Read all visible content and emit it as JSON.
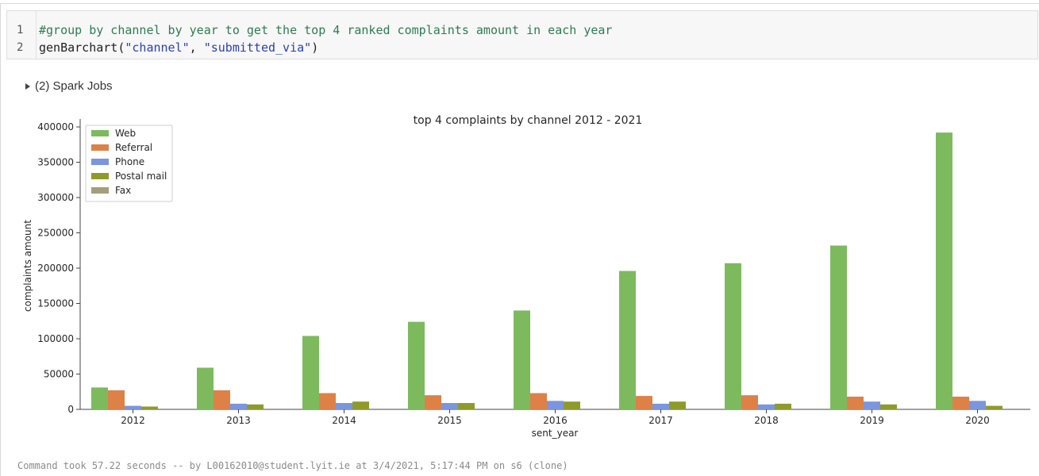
{
  "code": {
    "line_numbers": [
      "1",
      "2"
    ],
    "comment_line": "#group by channel by year to get the top 4 ranked complaints amount in each year",
    "call_func": "genBarchart(",
    "call_arg1": "\"channel\"",
    "call_sep": ", ",
    "call_arg2": "\"submitted_via\"",
    "call_close": ")"
  },
  "spark_jobs": {
    "label": "(2) Spark Jobs",
    "icon": "caret-right-icon"
  },
  "footer": {
    "text": "Command took 57.22 seconds -- by L00162010@student.lyit.ie at 3/4/2021, 5:17:44 PM on s6 (clone)"
  },
  "chart_data": {
    "type": "bar",
    "title": "top 4 complaints by channel 2012 - 2021",
    "xlabel": "sent_year",
    "ylabel": "complaints amount",
    "ylim": [
      0,
      400000
    ],
    "yticks": [
      "0",
      "50000",
      "100000",
      "150000",
      "200000",
      "250000",
      "300000",
      "350000",
      "400000"
    ],
    "legend_position": "top-left",
    "categories": [
      "2012",
      "2013",
      "2014",
      "2015",
      "2016",
      "2017",
      "2018",
      "2019",
      "2020"
    ],
    "series": [
      {
        "name": "Web",
        "color": "#7dba5e",
        "values": [
          31000,
          59000,
          104000,
          124000,
          140000,
          196000,
          207000,
          232000,
          392000
        ]
      },
      {
        "name": "Referral",
        "color": "#dd8147",
        "values": [
          27000,
          27000,
          23000,
          20000,
          23000,
          19000,
          20000,
          18000,
          18000
        ]
      },
      {
        "name": "Phone",
        "color": "#7b95de",
        "values": [
          5000,
          8000,
          9000,
          9000,
          12000,
          8000,
          7000,
          11000,
          12000
        ]
      },
      {
        "name": "Postal mail",
        "color": "#8e9b2a",
        "values": [
          4000,
          7000,
          11000,
          9000,
          11000,
          11000,
          8000,
          7000,
          5000
        ]
      },
      {
        "name": "Fax",
        "color": "#a39f7c",
        "values": [
          0,
          0,
          0,
          0,
          0,
          0,
          0,
          0,
          0
        ]
      }
    ]
  }
}
